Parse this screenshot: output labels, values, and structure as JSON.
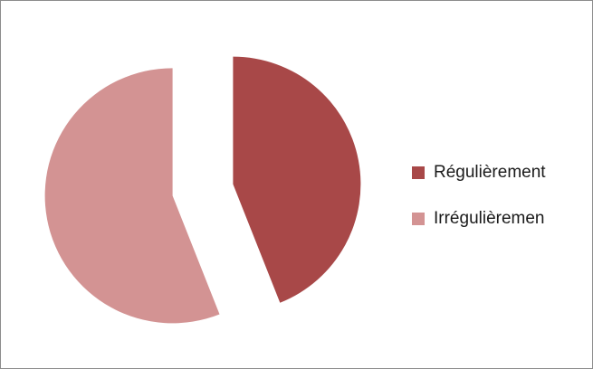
{
  "chart_data": {
    "type": "pie",
    "categories": [
      "Régulièrement",
      "Irrégulièremen"
    ],
    "values": [
      44,
      56
    ],
    "colors": [
      "#a84848",
      "#d39393"
    ],
    "exploded": true,
    "legend_position": "right"
  }
}
